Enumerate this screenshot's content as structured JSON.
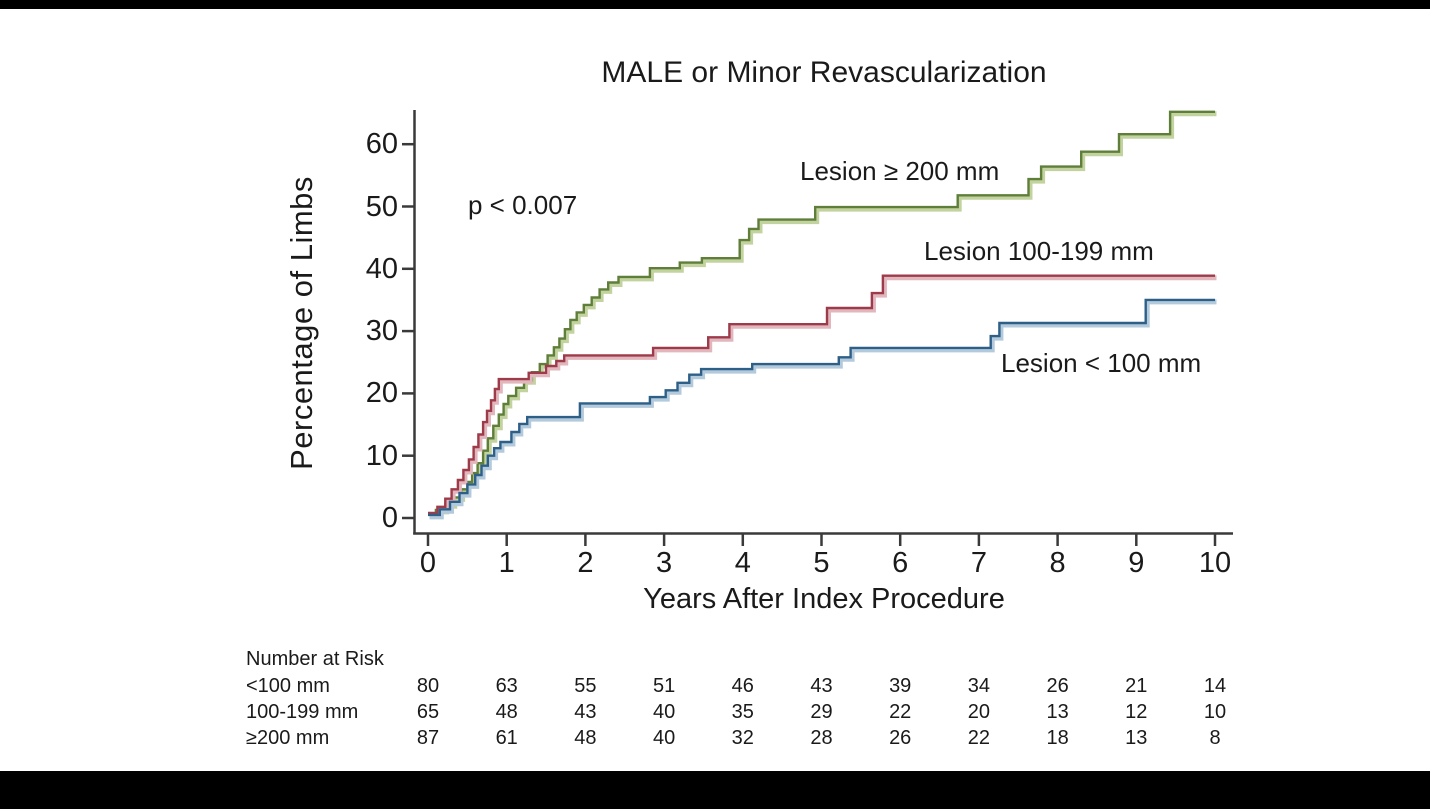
{
  "chart_data": {
    "type": "line",
    "subtype": "kaplan-meier-step",
    "title": "MALE or Minor Revascularization",
    "xlabel": "Years After Index Procedure",
    "ylabel": "Percentage of Limbs",
    "annotation": "p < 0.007",
    "xlim": [
      0,
      10
    ],
    "ylim": [
      0,
      66
    ],
    "x_ticks": [
      0,
      1,
      2,
      3,
      4,
      5,
      6,
      7,
      8,
      9,
      10
    ],
    "y_ticks": [
      0,
      10,
      20,
      30,
      40,
      50,
      60
    ],
    "grid": false,
    "legend_position": "labels-near-curves",
    "axis_color": "#3a3a3a",
    "series": [
      {
        "name": "Lesion ≥ 200 mm",
        "color": "#5e7e3a",
        "halo_color": "#c3d39f",
        "points": [
          [
            0,
            0.6
          ],
          [
            0.1,
            1.3
          ],
          [
            0.22,
            2.2
          ],
          [
            0.32,
            3.3
          ],
          [
            0.42,
            4.6
          ],
          [
            0.5,
            5.8
          ],
          [
            0.56,
            7.2
          ],
          [
            0.63,
            8.8
          ],
          [
            0.7,
            10.8
          ],
          [
            0.76,
            12.8
          ],
          [
            0.83,
            14.8
          ],
          [
            0.9,
            16.6
          ],
          [
            0.96,
            18.3
          ],
          [
            1.02,
            19.6
          ],
          [
            1.12,
            20.9
          ],
          [
            1.22,
            22.1
          ],
          [
            1.32,
            23.4
          ],
          [
            1.42,
            24.7
          ],
          [
            1.52,
            26.1
          ],
          [
            1.6,
            27.4
          ],
          [
            1.67,
            28.8
          ],
          [
            1.74,
            30.3
          ],
          [
            1.81,
            31.8
          ],
          [
            1.89,
            33.0
          ],
          [
            1.98,
            34.2
          ],
          [
            2.08,
            35.4
          ],
          [
            2.18,
            36.7
          ],
          [
            2.29,
            37.8
          ],
          [
            2.42,
            38.7
          ],
          [
            2.82,
            40.1
          ],
          [
            3.2,
            41.0
          ],
          [
            3.48,
            41.7
          ],
          [
            3.96,
            44.6
          ],
          [
            4.08,
            46.4
          ],
          [
            4.2,
            47.9
          ],
          [
            4.92,
            49.9
          ],
          [
            6.73,
            51.8
          ],
          [
            7.63,
            54.4
          ],
          [
            7.79,
            56.4
          ],
          [
            8.3,
            58.8
          ],
          [
            8.78,
            61.6
          ],
          [
            9.43,
            65.2
          ],
          [
            10,
            65.2
          ]
        ]
      },
      {
        "name": "Lesion 100-199 mm",
        "color": "#9e3b4a",
        "halo_color": "#e2b6bd",
        "points": [
          [
            0,
            0.8
          ],
          [
            0.12,
            1.8
          ],
          [
            0.22,
            3.1
          ],
          [
            0.3,
            4.6
          ],
          [
            0.38,
            6.1
          ],
          [
            0.45,
            7.7
          ],
          [
            0.52,
            9.4
          ],
          [
            0.58,
            11.4
          ],
          [
            0.64,
            13.4
          ],
          [
            0.7,
            15.4
          ],
          [
            0.75,
            17.2
          ],
          [
            0.8,
            18.9
          ],
          [
            0.85,
            20.7
          ],
          [
            0.9,
            22.3
          ],
          [
            1.28,
            23.3
          ],
          [
            1.5,
            24.4
          ],
          [
            1.63,
            25.2
          ],
          [
            1.73,
            26.1
          ],
          [
            2.86,
            27.3
          ],
          [
            3.56,
            29.0
          ],
          [
            3.83,
            31.1
          ],
          [
            5.07,
            33.7
          ],
          [
            5.64,
            36.1
          ],
          [
            5.78,
            38.9
          ],
          [
            10,
            38.9
          ]
        ]
      },
      {
        "name": "Lesion < 100 mm",
        "color": "#2e5f87",
        "halo_color": "#b3c9dc",
        "points": [
          [
            0,
            0.5
          ],
          [
            0.15,
            1.4
          ],
          [
            0.28,
            2.6
          ],
          [
            0.4,
            4.0
          ],
          [
            0.5,
            5.4
          ],
          [
            0.6,
            6.9
          ],
          [
            0.68,
            8.4
          ],
          [
            0.76,
            10.0
          ],
          [
            0.84,
            11.2
          ],
          [
            0.92,
            12.2
          ],
          [
            1.06,
            13.8
          ],
          [
            1.16,
            15.1
          ],
          [
            1.26,
            16.2
          ],
          [
            1.93,
            18.4
          ],
          [
            2.82,
            19.4
          ],
          [
            3.02,
            20.5
          ],
          [
            3.17,
            21.7
          ],
          [
            3.32,
            23.0
          ],
          [
            3.47,
            23.9
          ],
          [
            4.12,
            24.7
          ],
          [
            5.22,
            25.8
          ],
          [
            5.37,
            27.3
          ],
          [
            7.15,
            29.2
          ],
          [
            7.26,
            31.3
          ],
          [
            9.12,
            35.0
          ],
          [
            10,
            35.0
          ]
        ]
      }
    ],
    "number_at_risk": {
      "heading": "Number at Risk",
      "rows": [
        {
          "label": "<100 mm",
          "values": [
            80,
            63,
            55,
            51,
            46,
            43,
            39,
            34,
            26,
            21,
            14
          ]
        },
        {
          "label": "100-199 mm",
          "values": [
            65,
            48,
            43,
            40,
            35,
            29,
            22,
            20,
            13,
            12,
            10
          ]
        },
        {
          "label": "≥200 mm",
          "values": [
            87,
            61,
            48,
            40,
            32,
            28,
            26,
            22,
            18,
            13,
            8
          ]
        }
      ]
    }
  }
}
